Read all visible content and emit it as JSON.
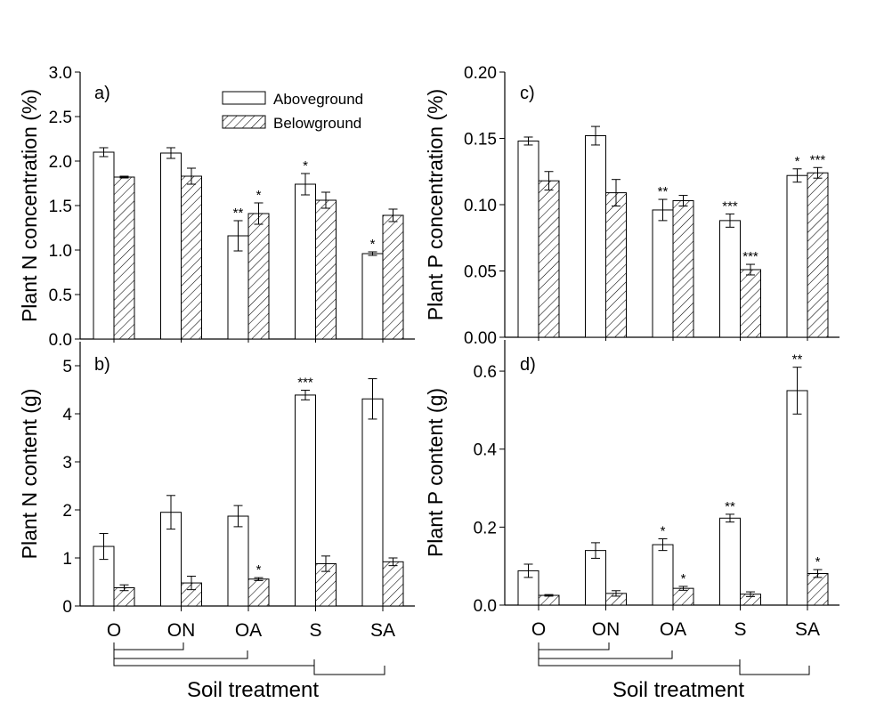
{
  "legend": [
    "Aboveground",
    "Belowground"
  ],
  "x_title": "Soil treatment",
  "chart_data": [
    {
      "type": "bar",
      "panel": "a)",
      "categories": [
        "O",
        "ON",
        "OA",
        "S",
        "SA"
      ],
      "ylabel": "Plant N concentration (%)",
      "ylim": [
        0,
        3.0
      ],
      "yticks": [
        "0.0",
        "0.5",
        "1.0",
        "1.5",
        "2.0",
        "2.5",
        "3.0"
      ],
      "show_categories": false,
      "legend": "top-center",
      "series": [
        {
          "name": "Aboveground",
          "values": [
            2.1,
            2.09,
            1.16,
            1.74,
            0.96
          ],
          "errors": [
            0.05,
            0.06,
            0.17,
            0.12,
            0.02
          ],
          "stars": [
            "",
            "",
            "**",
            "*",
            "*"
          ]
        },
        {
          "name": "Belowground",
          "values": [
            1.82,
            1.83,
            1.41,
            1.56,
            1.39
          ],
          "errors": [
            0.01,
            0.09,
            0.12,
            0.09,
            0.07
          ],
          "stars": [
            "",
            "",
            "*",
            "",
            ""
          ]
        }
      ]
    },
    {
      "type": "bar",
      "panel": "b)",
      "categories": [
        "O",
        "ON",
        "OA",
        "S",
        "SA"
      ],
      "ylabel": "Plant N content (g)",
      "ylim": [
        0,
        5.5
      ],
      "yticks": [
        "0",
        "1",
        "2",
        "3",
        "4",
        "5"
      ],
      "show_categories": true,
      "series": [
        {
          "name": "Aboveground",
          "values": [
            1.24,
            1.95,
            1.87,
            4.39,
            4.31
          ],
          "errors": [
            0.27,
            0.35,
            0.22,
            0.1,
            0.42
          ],
          "stars": [
            "",
            "",
            "",
            "***",
            ""
          ]
        },
        {
          "name": "Belowground",
          "values": [
            0.38,
            0.48,
            0.56,
            0.88,
            0.92
          ],
          "errors": [
            0.06,
            0.14,
            0.03,
            0.16,
            0.08
          ],
          "stars": [
            "",
            "",
            "*",
            "",
            ""
          ]
        }
      ]
    },
    {
      "type": "bar",
      "panel": "c)",
      "categories": [
        "O",
        "ON",
        "OA",
        "S",
        "SA"
      ],
      "ylabel": "Plant P concentration (%)",
      "ylim": [
        0,
        0.2
      ],
      "yticks": [
        "0.00",
        "0.05",
        "0.10",
        "0.15",
        "0.20"
      ],
      "show_categories": false,
      "series": [
        {
          "name": "Aboveground",
          "values": [
            0.148,
            0.152,
            0.096,
            0.088,
            0.122
          ],
          "errors": [
            0.003,
            0.007,
            0.008,
            0.005,
            0.005
          ],
          "stars": [
            "",
            "",
            "**",
            "***",
            "*"
          ]
        },
        {
          "name": "Belowground",
          "values": [
            0.118,
            0.109,
            0.103,
            0.051,
            0.124
          ],
          "errors": [
            0.007,
            0.01,
            0.004,
            0.004,
            0.004
          ],
          "stars": [
            "",
            "",
            "",
            "***",
            "***"
          ]
        }
      ]
    },
    {
      "type": "bar",
      "panel": "d)",
      "categories": [
        "O",
        "ON",
        "OA",
        "S",
        "SA"
      ],
      "ylabel": "Plant P content (g)",
      "ylim": [
        0,
        0.68
      ],
      "yticks": [
        "0.0",
        "0.2",
        "0.4",
        "0.6"
      ],
      "show_categories": true,
      "series": [
        {
          "name": "Aboveground",
          "values": [
            0.088,
            0.14,
            0.155,
            0.223,
            0.55
          ],
          "errors": [
            0.017,
            0.02,
            0.015,
            0.01,
            0.06
          ],
          "stars": [
            "",
            "",
            "*",
            "**",
            "**"
          ]
        },
        {
          "name": "Belowground",
          "values": [
            0.025,
            0.03,
            0.043,
            0.028,
            0.081
          ],
          "errors": [
            0.002,
            0.007,
            0.005,
            0.006,
            0.01
          ],
          "stars": [
            "",
            "",
            "*",
            "",
            "*"
          ]
        }
      ]
    }
  ]
}
